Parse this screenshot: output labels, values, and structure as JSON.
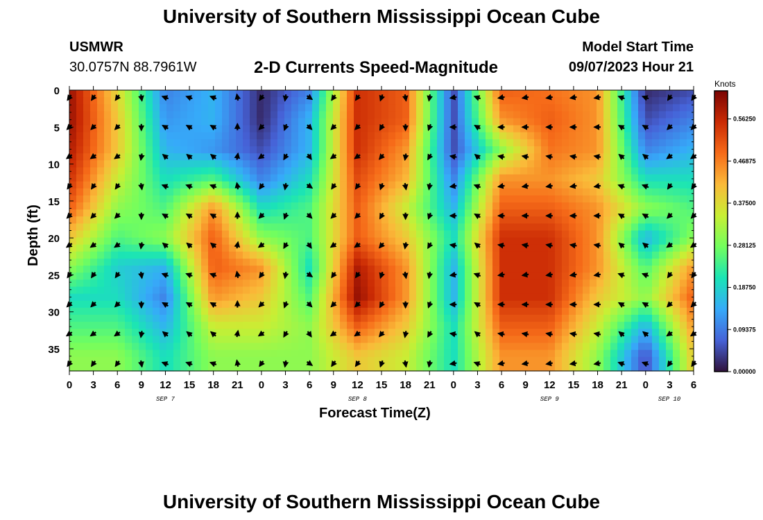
{
  "page": {
    "title": "University of Southern Mississippi Ocean Cube",
    "station": "USMWR",
    "location": "30.0757N  88.7961W",
    "product": "2-D Currents Speed-Magnitude",
    "model_start_label": "Model Start Time",
    "model_start_value": "09/07/2023 Hour 21",
    "footer_title": "University of Southern Mississippi Ocean Cube"
  },
  "chart_data": {
    "type": "heatmap",
    "title": "2-D Currents Speed-Magnitude",
    "xlabel": "Forecast Time(Z)",
    "ylabel": "Depth (ft)",
    "x_tick_labels": [
      "0",
      "3",
      "6",
      "9",
      "12",
      "15",
      "18",
      "21",
      "0",
      "3",
      "6",
      "9",
      "12",
      "15",
      "18",
      "21",
      "0",
      "3",
      "6",
      "9",
      "12",
      "15",
      "18",
      "21",
      "0",
      "3",
      "6"
    ],
    "date_labels": [
      "SEP 7",
      "SEP 8",
      "SEP 9",
      "SEP 10"
    ],
    "y_ticks": [
      0,
      5,
      10,
      15,
      20,
      25,
      30,
      35
    ],
    "ylim": [
      0,
      38
    ],
    "xlim_hours": [
      0,
      78
    ],
    "colorbar": {
      "label": "Knots",
      "ticks": [
        "0.56250",
        "0.46875",
        "0.37500",
        "0.28125",
        "0.18750",
        "0.09375",
        "0.00000"
      ],
      "range": [
        0,
        0.625
      ],
      "colors": [
        "#30123b",
        "#4662d7",
        "#36aaf9",
        "#1ae4b6",
        "#72fe5e",
        "#c8ef34",
        "#faba39",
        "#f66b19",
        "#ca2a04",
        "#7a0403"
      ]
    },
    "depths_ft": [
      0,
      4,
      8,
      12,
      16,
      20,
      24,
      28,
      32,
      36
    ],
    "times_h": [
      0,
      6,
      12,
      18,
      24,
      30,
      36,
      42,
      48,
      54,
      60,
      66,
      72,
      78
    ],
    "speed_knots": [
      [
        0.6,
        0.38,
        0.1,
        0.15,
        0.02,
        0.1,
        0.55,
        0.5,
        0.05,
        0.5,
        0.48,
        0.45,
        0.02,
        0.05
      ],
      [
        0.6,
        0.4,
        0.12,
        0.15,
        0.02,
        0.15,
        0.55,
        0.5,
        0.05,
        0.45,
        0.5,
        0.45,
        0.05,
        0.1
      ],
      [
        0.58,
        0.4,
        0.15,
        0.12,
        0.05,
        0.15,
        0.55,
        0.45,
        0.05,
        0.3,
        0.48,
        0.45,
        0.1,
        0.15
      ],
      [
        0.55,
        0.35,
        0.2,
        0.25,
        0.1,
        0.2,
        0.52,
        0.42,
        0.1,
        0.45,
        0.45,
        0.4,
        0.2,
        0.2
      ],
      [
        0.5,
        0.3,
        0.25,
        0.45,
        0.2,
        0.25,
        0.5,
        0.35,
        0.15,
        0.5,
        0.5,
        0.45,
        0.3,
        0.25
      ],
      [
        0.4,
        0.25,
        0.3,
        0.5,
        0.3,
        0.25,
        0.5,
        0.4,
        0.2,
        0.55,
        0.55,
        0.45,
        0.15,
        0.3
      ],
      [
        0.3,
        0.18,
        0.15,
        0.5,
        0.45,
        0.2,
        0.58,
        0.45,
        0.15,
        0.55,
        0.55,
        0.45,
        0.25,
        0.45
      ],
      [
        0.2,
        0.2,
        0.1,
        0.45,
        0.4,
        0.25,
        0.6,
        0.45,
        0.15,
        0.55,
        0.55,
        0.4,
        0.3,
        0.5
      ],
      [
        0.25,
        0.25,
        0.15,
        0.35,
        0.35,
        0.3,
        0.5,
        0.4,
        0.2,
        0.5,
        0.5,
        0.35,
        0.15,
        0.45
      ],
      [
        0.3,
        0.3,
        0.2,
        0.3,
        0.3,
        0.3,
        0.4,
        0.35,
        0.2,
        0.45,
        0.45,
        0.3,
        0.05,
        0.4
      ]
    ],
    "arrow_cols_h": [
      0,
      3,
      6,
      9,
      12,
      15,
      18,
      21,
      24,
      27,
      30,
      33,
      36,
      39,
      42,
      45,
      48,
      51,
      54,
      57,
      60,
      63,
      66,
      69,
      72,
      75,
      78
    ],
    "arrow_rows_ft": [
      0,
      4,
      8,
      12,
      16,
      20,
      24,
      28,
      32,
      36
    ],
    "arrow_dir_deg_by_col": [
      135,
      135,
      135,
      90,
      -150,
      -150,
      -150,
      -90,
      135,
      110,
      45,
      135,
      135,
      120,
      90,
      110,
      180,
      -150,
      180,
      180,
      180,
      180,
      180,
      -150,
      -150,
      135,
      135
    ]
  }
}
